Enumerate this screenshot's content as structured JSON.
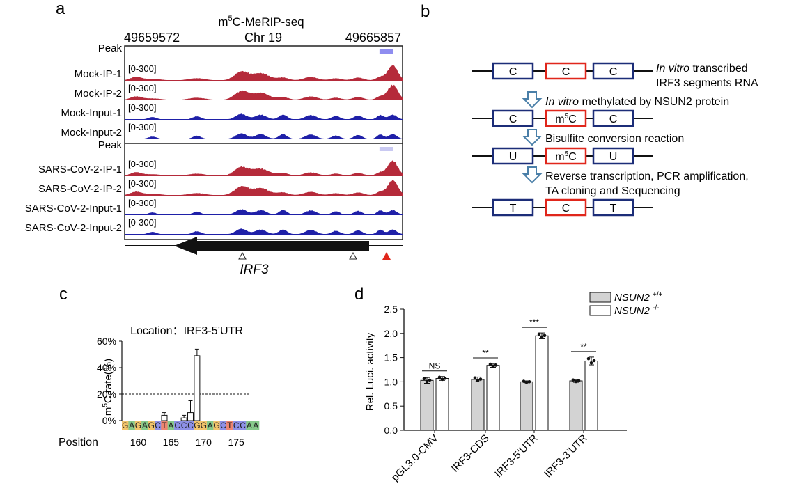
{
  "panel_a": {
    "letter": "a",
    "title_prefix": "m",
    "title_sup": "5",
    "title_rest": "C-MeRIP-seq",
    "coord_left": "49659572",
    "coord_mid": "Chr 19",
    "coord_right": "49665857",
    "tracks": [
      {
        "label": "Peak",
        "range": "",
        "kind": "peak"
      },
      {
        "label": "Mock-IP-1",
        "range": "[0-300]",
        "kind": "ip"
      },
      {
        "label": "Mock-IP-2",
        "range": "[0-300]",
        "kind": "ip"
      },
      {
        "label": "Mock-Input-1",
        "range": "[0-300]",
        "kind": "input"
      },
      {
        "label": "Mock-Input-2",
        "range": "[0-300]",
        "kind": "input"
      },
      {
        "label": "Peak",
        "range": "",
        "kind": "peak"
      },
      {
        "label": "SARS-CoV-2-IP-1",
        "range": "[0-300]",
        "kind": "ip"
      },
      {
        "label": "SARS-CoV-2-IP-2",
        "range": "[0-300]",
        "kind": "ip"
      },
      {
        "label": "SARS-CoV-2-Input-1",
        "range": "[0-300]",
        "kind": "input"
      },
      {
        "label": "SARS-CoV-2-Input-2",
        "range": "[0-300]",
        "kind": "input"
      }
    ],
    "gene": "IRF3",
    "colors": {
      "ip": "#b52a3a",
      "input": "#1f20a8",
      "peak_mock": "#8f8df0",
      "peak_sars": "#c9c9f2",
      "marker_red": "#e0261b"
    }
  },
  "panel_b": {
    "letter": "b",
    "rows": [
      {
        "boxes": [
          "C",
          "C",
          "C"
        ]
      },
      {
        "boxes": [
          "C",
          "m5C",
          "C"
        ]
      },
      {
        "boxes": [
          "U",
          "m5C",
          "U"
        ]
      },
      {
        "boxes": [
          "T",
          "C",
          "T"
        ]
      }
    ],
    "step1_italic": "In vitro",
    "step1_rest": " transcribed",
    "step1_line2": "IRF3 segments RNA",
    "step2_italic": "In vitro",
    "step2_rest": " methylated by NSUN2 protein",
    "step3": "Bisulfite conversion reaction",
    "step4_line1": "Reverse transcription, PCR amplification,",
    "step4_line2": "TA cloning  and Sequencing",
    "colors": {
      "blue_box": "#1c2d78",
      "red_box": "#e0261b",
      "arrow": "#4a7fa8"
    }
  },
  "panel_c": {
    "letter": "c",
    "title": "Location：IRF3-5’UTR",
    "ylabel": "m5C rate(%)",
    "xlabel": "Position",
    "ytick_labels": [
      "60%",
      "40%",
      "20%",
      "0%"
    ],
    "xtick_labels": [
      "160",
      "165",
      "170",
      "175"
    ],
    "sequence": "GAGAGCTACCCGGAGCTCCAA",
    "threshold_pct": 20,
    "base_colors": {
      "G": "#f2c46b",
      "A": "#86c98a",
      "C": "#8d90e6",
      "T": "#ee8570"
    }
  },
  "panel_d": {
    "letter": "d",
    "legend": [
      {
        "name": "NSUN2",
        "sup": "+/+",
        "color": "#d3d3d3"
      },
      {
        "name": "NSUN2",
        "sup": "-/-",
        "color": "#ffffff"
      }
    ],
    "ytick_labels": [
      "0.0",
      "0.5",
      "1.0",
      "1.5",
      "2.0",
      "2.5"
    ],
    "sig_labels": [
      "NS",
      "**",
      "***",
      "**"
    ]
  },
  "chart_data": [
    {
      "type": "bar",
      "title": "Location：IRF3-5’UTR",
      "xlabel": "Position",
      "ylabel": "m5C rate(%)",
      "ylim": [
        0,
        60
      ],
      "grid": false,
      "x_start": 158,
      "threshold": 20,
      "x": [
        164,
        167,
        168,
        169
      ],
      "values": [
        4,
        2,
        6,
        49
      ],
      "errors": [
        2,
        2,
        9,
        5
      ]
    },
    {
      "type": "bar",
      "title": "",
      "xlabel": "",
      "ylabel": "Rel. Luci. activity",
      "ylim": [
        0,
        2.5
      ],
      "grid": false,
      "legend": "top-right",
      "categories": [
        "pGL3.0-CMV",
        "IRF3-CDS",
        "IRF3-5’UTR",
        "IRF3-3’UTR"
      ],
      "series": [
        {
          "name": "NSUN2 +/+",
          "values": [
            1.03,
            1.05,
            1.0,
            1.02
          ],
          "errors": [
            0.06,
            0.05,
            0.02,
            0.03
          ]
        },
        {
          "name": "NSUN2 -/-",
          "values": [
            1.07,
            1.34,
            1.95,
            1.43
          ],
          "errors": [
            0.04,
            0.04,
            0.06,
            0.08
          ]
        }
      ]
    }
  ]
}
